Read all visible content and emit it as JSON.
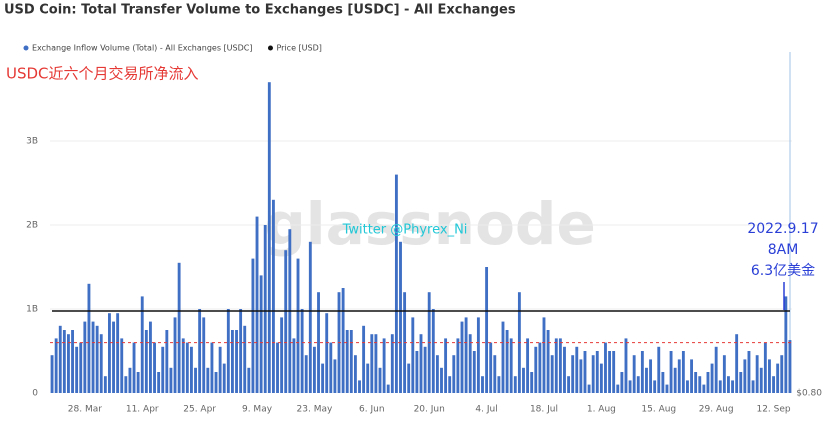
{
  "chart_data": {
    "type": "bar",
    "title": "USD Coin: Total Transfer Volume to Exchanges [USDC] - All Exchanges",
    "annotations": {
      "note": "USDC近六个月交易所净流入",
      "credit": "Twitter @Phyrex_Ni",
      "watermark": "glassnode",
      "date": "2022.9.17",
      "time": "8AM",
      "amount": "6.3亿美金"
    },
    "categories": [
      null,
      null,
      null,
      null,
      null,
      null,
      null,
      null,
      "28. Mar",
      null,
      null,
      null,
      null,
      null,
      null,
      null,
      null,
      null,
      null,
      null,
      null,
      null,
      "11. Apr",
      null,
      null,
      null,
      null,
      null,
      null,
      null,
      null,
      null,
      null,
      null,
      null,
      null,
      "25. Apr",
      null,
      null,
      null,
      null,
      null,
      null,
      null,
      null,
      null,
      null,
      null,
      null,
      null,
      "9. May",
      null,
      null,
      null,
      null,
      null,
      null,
      null,
      null,
      null,
      null,
      null,
      null,
      null,
      "23. May",
      null,
      null,
      null,
      null,
      null,
      null,
      null,
      null,
      null,
      null,
      null,
      null,
      null,
      "6. Jun",
      null,
      null,
      null,
      null,
      null,
      null,
      null,
      null,
      null,
      null,
      null,
      null,
      null,
      "20. Jun",
      null,
      null,
      null,
      null,
      null,
      null,
      null,
      null,
      null,
      null,
      null,
      null,
      null,
      "4. Jul",
      null,
      null,
      null,
      null,
      null,
      null,
      null,
      null,
      null,
      null,
      null,
      null,
      null,
      "18. Jul",
      null,
      null,
      null,
      null,
      null,
      null,
      null,
      null,
      null,
      null,
      null,
      null,
      null,
      "1. Aug",
      null,
      null,
      null,
      null,
      null,
      null,
      null,
      null,
      null,
      null,
      null,
      null,
      null,
      "15. Aug",
      null,
      null,
      null,
      null,
      null,
      null,
      null,
      null,
      null,
      null,
      null,
      null,
      null,
      "29. Aug",
      null,
      null,
      null,
      null,
      null,
      null,
      null,
      null,
      null,
      null,
      null,
      null,
      null,
      "12. Sep",
      null,
      null,
      null,
      null
    ],
    "series": [
      {
        "name": "Exchange Inflow Volume (Total) - All Exchanges [USDC]",
        "color": "#3f6fc4",
        "values": [
          450000000.0,
          650000000.0,
          800000000.0,
          750000000.0,
          700000000.0,
          750000000.0,
          550000000.0,
          600000000.0,
          850000000.0,
          1300000000.0,
          850000000.0,
          800000000.0,
          700000000.0,
          200000000.0,
          950000000.0,
          850000000.0,
          950000000.0,
          650000000.0,
          200000000.0,
          300000000.0,
          600000000.0,
          250000000.0,
          1150000000.0,
          750000000.0,
          850000000.0,
          600000000.0,
          250000000.0,
          550000000.0,
          750000000.0,
          300000000.0,
          900000000.0,
          1550000000.0,
          650000000.0,
          600000000.0,
          550000000.0,
          300000000.0,
          1000000000.0,
          900000000.0,
          300000000.0,
          600000000.0,
          250000000.0,
          550000000.0,
          350000000.0,
          1000000000.0,
          750000000.0,
          750000000.0,
          1000000000.0,
          800000000.0,
          300000000.0,
          1600000000.0,
          2100000000.0,
          1400000000.0,
          2000000000.0,
          3700000000.0,
          2300000000.0,
          600000000.0,
          900000000.0,
          1700000000.0,
          1950000000.0,
          650000000.0,
          1600000000.0,
          1000000000.0,
          450000000.0,
          1800000000.0,
          550000000.0,
          1200000000.0,
          350000000.0,
          950000000.0,
          600000000.0,
          400000000.0,
          1200000000.0,
          1250000000.0,
          750000000.0,
          750000000.0,
          450000000.0,
          150000000.0,
          800000000.0,
          350000000.0,
          700000000.0,
          700000000.0,
          300000000.0,
          650000000.0,
          100000000.0,
          700000000.0,
          2600000000.0,
          1800000000.0,
          1200000000.0,
          350000000.0,
          900000000.0,
          500000000.0,
          700000000.0,
          550000000.0,
          1200000000.0,
          1000000000.0,
          450000000.0,
          300000000.0,
          650000000.0,
          200000000.0,
          450000000.0,
          650000000.0,
          850000000.0,
          900000000.0,
          700000000.0,
          500000000.0,
          900000000.0,
          200000000.0,
          1500000000.0,
          600000000.0,
          450000000.0,
          200000000.0,
          850000000.0,
          750000000.0,
          650000000.0,
          200000000.0,
          1200000000.0,
          300000000.0,
          650000000.0,
          250000000.0,
          550000000.0,
          600000000.0,
          900000000.0,
          750000000.0,
          450000000.0,
          650000000.0,
          650000000.0,
          550000000.0,
          200000000.0,
          450000000.0,
          550000000.0,
          400000000.0,
          500000000.0,
          100000000.0,
          450000000.0,
          500000000.0,
          350000000.0,
          600000000.0,
          500000000.0,
          500000000.0,
          100000000.0,
          250000000.0,
          650000000.0,
          150000000.0,
          450000000.0,
          200000000.0,
          500000000.0,
          300000000.0,
          400000000.0,
          150000000.0,
          550000000.0,
          250000000.0,
          100000000.0,
          500000000.0,
          300000000.0,
          400000000.0,
          500000000.0,
          150000000.0,
          400000000.0,
          250000000.0,
          200000000.0,
          100000000.0,
          250000000.0,
          350000000.0,
          550000000.0,
          150000000.0,
          450000000.0,
          200000000.0,
          150000000.0,
          700000000.0,
          250000000.0,
          400000000.0,
          500000000.0,
          150000000.0,
          450000000.0,
          300000000.0,
          600000000.0,
          400000000.0,
          200000000.0,
          350000000.0,
          450000000.0,
          1150000000.0,
          630000000.0
        ]
      },
      {
        "name": "Price [USD]",
        "color": "#111111",
        "axis": "y2",
        "values": [
          1,
          1,
          1,
          1,
          1,
          1,
          1,
          1,
          1,
          1,
          1,
          1,
          1,
          1,
          1,
          1,
          1,
          1,
          1,
          1,
          1,
          1,
          1,
          1,
          1,
          1,
          1,
          1,
          1,
          1,
          1,
          1,
          1,
          1,
          1,
          1,
          1,
          1,
          1,
          1,
          1,
          1,
          1,
          1,
          1,
          1,
          1,
          1,
          1,
          1,
          1,
          1,
          1,
          1,
          1,
          1,
          1,
          1,
          1,
          1,
          1,
          1,
          1,
          1,
          1,
          1,
          1,
          1,
          1,
          1,
          1,
          1,
          1,
          1,
          1,
          1,
          1,
          1,
          1,
          1,
          1,
          1,
          1,
          1,
          1,
          1,
          1,
          1,
          1,
          1,
          1,
          1,
          1,
          1,
          1,
          1,
          1,
          1,
          1,
          1,
          1,
          1,
          1,
          1,
          1,
          1,
          1,
          1,
          1,
          1,
          1,
          1,
          1,
          1,
          1,
          1,
          1,
          1,
          1,
          1,
          1,
          1,
          1,
          1,
          1,
          1,
          1,
          1,
          1,
          1,
          1,
          1,
          1,
          1,
          1,
          1,
          1,
          1,
          1,
          1,
          1,
          1,
          1,
          1,
          1,
          1,
          1,
          1,
          1,
          1,
          1,
          1,
          1,
          1,
          1,
          1,
          1,
          1,
          1,
          1,
          1,
          1,
          1,
          1,
          1,
          1,
          1,
          1,
          1,
          1,
          1,
          1,
          1,
          1,
          1,
          1,
          1,
          1,
          1,
          1,
          1
        ]
      }
    ],
    "ylim": [
      0,
      4000000000.0
    ],
    "yticks": [
      0,
      {
        "value": 1000000000.0,
        "label": "1B"
      },
      {
        "value": 2000000000.0,
        "label": "2B"
      },
      {
        "value": 3000000000.0,
        "label": "3B"
      }
    ],
    "y2lim": [
      0.8,
      1.62
    ],
    "y2ticks": [
      {
        "value": 0.8,
        "label": "$0.80"
      }
    ],
    "reference_line": {
      "value": 600000000.0,
      "color": "#e53935"
    },
    "grid": true
  }
}
